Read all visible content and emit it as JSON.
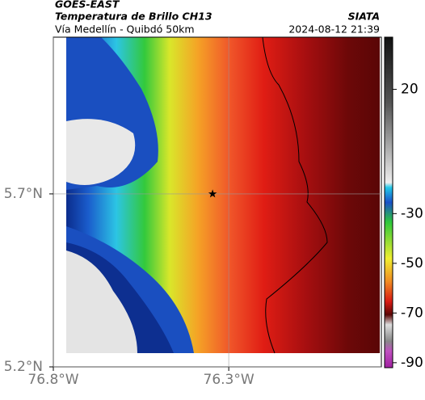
{
  "header": {
    "source": "GOES-EAST",
    "product": "Temperatura de Brillo CH13",
    "agency": "SIATA",
    "route": "Vía Medellín - Quibdó 50km",
    "timestamp": "2024-08-12 21:39"
  },
  "map": {
    "xlim": [
      -76.8,
      -75.865
    ],
    "ylim": [
      5.2,
      6.153
    ],
    "xticks": [
      {
        "value": -76.8,
        "label": "76.8°W"
      },
      {
        "value": -76.3,
        "label": "76.3°W"
      }
    ],
    "yticks": [
      {
        "value": 5.2,
        "label": "5.2°N"
      },
      {
        "value": 5.7,
        "label": "5.7°N"
      }
    ],
    "grid": true,
    "marker": {
      "lon": -76.346,
      "lat": 5.7
    }
  },
  "colorbar": {
    "clim": [
      -92,
      41
    ],
    "ticks": [
      20,
      -30,
      -50,
      -70,
      -90
    ]
  }
}
